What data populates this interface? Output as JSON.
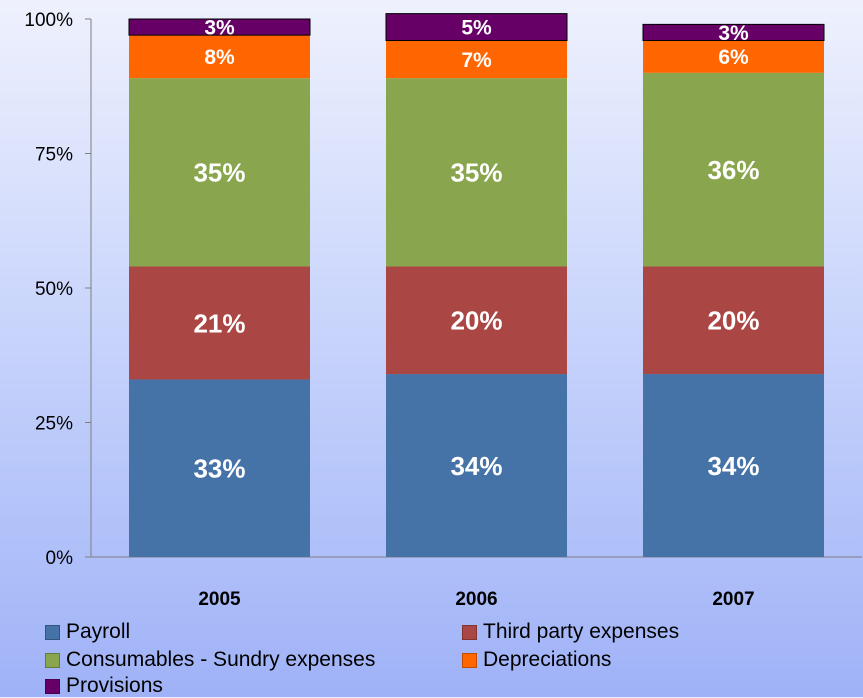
{
  "chart_data": {
    "type": "bar",
    "stacked": true,
    "categories": [
      "2005",
      "2006",
      "2007"
    ],
    "ylim": [
      0,
      100
    ],
    "yticks": [
      0,
      25,
      50,
      75,
      100
    ],
    "ytick_labels": [
      "0%",
      "25%",
      "50%",
      "75%",
      "100%"
    ],
    "grid": false,
    "legend_position": "bottom",
    "series": [
      {
        "name": "Payroll",
        "color": "#4572A7",
        "values": [
          33,
          34,
          34
        ],
        "labels": [
          "33%",
          "34%",
          "34%"
        ]
      },
      {
        "name": "Third party expenses",
        "color": "#AA4643",
        "values": [
          21,
          20,
          20
        ],
        "labels": [
          "21%",
          "20%",
          "20%"
        ]
      },
      {
        "name": "Consumables - Sundry expenses",
        "color": "#89A54E",
        "values": [
          35,
          35,
          36
        ],
        "labels": [
          "35%",
          "35%",
          "36%"
        ]
      },
      {
        "name": "Depreciations",
        "color": "#FF6600",
        "values": [
          8,
          7,
          6
        ],
        "labels": [
          "8%",
          "7%",
          "6%"
        ]
      },
      {
        "name": "Provisions",
        "color": "#660066",
        "values": [
          3,
          5,
          3
        ],
        "labels": [
          "3%",
          "5%",
          "3%"
        ]
      }
    ]
  }
}
